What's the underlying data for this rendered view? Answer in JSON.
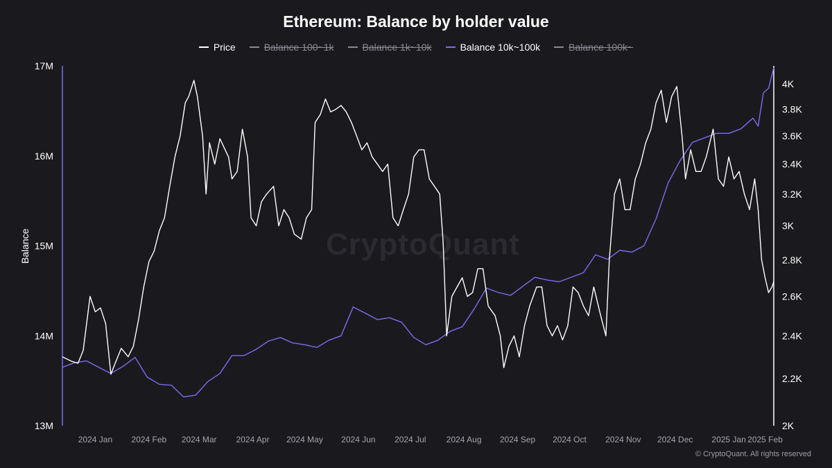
{
  "header": {
    "title": "Ethereum: Balance by holder value"
  },
  "legend": [
    {
      "label": "Price",
      "color": "#ffffff",
      "active": true
    },
    {
      "label": "Balance 100~1k",
      "color": "#8a8a93",
      "active": false
    },
    {
      "label": "Balance 1k~10k",
      "color": "#8a8a93",
      "active": false
    },
    {
      "label": "Balance 10k~100k",
      "color": "#7b6cf0",
      "active": true
    },
    {
      "label": "Balance 100k~",
      "color": "#8a8a93",
      "active": false
    }
  ],
  "watermark": "CryptoQuant",
  "credit": "© CryptoQuant. All rights reserved",
  "chart_data": {
    "type": "line",
    "ylabel": "Balance",
    "y_left_range": [
      13000000,
      17000000
    ],
    "y_left_ticks": [
      "13M",
      "14M",
      "15M",
      "16M",
      "17M"
    ],
    "y_left_tick_values": [
      13000000,
      14000000,
      15000000,
      16000000,
      17000000
    ],
    "y_right_scale": "log",
    "y_right_range": [
      2000,
      4150
    ],
    "y_right_ticks": [
      "2K",
      "2.2K",
      "2.4K",
      "2.6K",
      "2.8K",
      "3K",
      "3.2K",
      "3.4K",
      "3.6K",
      "3.8K",
      "4K"
    ],
    "y_right_tick_values": [
      2000,
      2200,
      2400,
      2600,
      2800,
      3000,
      3200,
      3400,
      3600,
      3800,
      4000
    ],
    "x_range": [
      "2023-12-27",
      "2025-02-10"
    ],
    "x_ticks": [
      {
        "label": "2024 Jan",
        "date": "2024-01-15"
      },
      {
        "label": "2024 Feb",
        "date": "2024-02-15"
      },
      {
        "label": "2024 Mar",
        "date": "2024-03-15"
      },
      {
        "label": "2024 Apr",
        "date": "2024-04-15"
      },
      {
        "label": "2024 May",
        "date": "2024-05-15"
      },
      {
        "label": "2024 Jun",
        "date": "2024-06-15"
      },
      {
        "label": "2024 Jul",
        "date": "2024-07-15"
      },
      {
        "label": "2024 Aug",
        "date": "2024-08-15"
      },
      {
        "label": "2024 Sep",
        "date": "2024-09-15"
      },
      {
        "label": "2024 Oct",
        "date": "2024-10-15"
      },
      {
        "label": "2024 Nov",
        "date": "2024-11-15"
      },
      {
        "label": "2024 Dec",
        "date": "2024-12-15"
      },
      {
        "label": "2025 Jan",
        "date": "2025-01-15"
      },
      {
        "label": "2025 Feb",
        "date": "2025-02-05"
      }
    ],
    "grid": false,
    "legend_position": "top-center",
    "series": [
      {
        "name": "Price",
        "axis": "right",
        "color": "#ffffff",
        "points": [
          [
            "2023-12-27",
            2300
          ],
          [
            "2024-01-01",
            2280
          ],
          [
            "2024-01-05",
            2270
          ],
          [
            "2024-01-08",
            2330
          ],
          [
            "2024-01-12",
            2600
          ],
          [
            "2024-01-15",
            2520
          ],
          [
            "2024-01-18",
            2540
          ],
          [
            "2024-01-21",
            2460
          ],
          [
            "2024-01-24",
            2220
          ],
          [
            "2024-01-27",
            2280
          ],
          [
            "2024-01-30",
            2340
          ],
          [
            "2024-02-03",
            2300
          ],
          [
            "2024-02-06",
            2350
          ],
          [
            "2024-02-09",
            2480
          ],
          [
            "2024-02-12",
            2650
          ],
          [
            "2024-02-15",
            2790
          ],
          [
            "2024-02-18",
            2850
          ],
          [
            "2024-02-21",
            2970
          ],
          [
            "2024-02-24",
            3050
          ],
          [
            "2024-02-27",
            3250
          ],
          [
            "2024-03-01",
            3450
          ],
          [
            "2024-03-04",
            3600
          ],
          [
            "2024-03-07",
            3850
          ],
          [
            "2024-03-09",
            3900
          ],
          [
            "2024-03-12",
            4030
          ],
          [
            "2024-03-14",
            3900
          ],
          [
            "2024-03-17",
            3600
          ],
          [
            "2024-03-19",
            3200
          ],
          [
            "2024-03-21",
            3550
          ],
          [
            "2024-03-24",
            3400
          ],
          [
            "2024-03-27",
            3580
          ],
          [
            "2024-03-30",
            3500
          ],
          [
            "2024-04-01",
            3450
          ],
          [
            "2024-04-03",
            3300
          ],
          [
            "2024-04-06",
            3350
          ],
          [
            "2024-04-09",
            3650
          ],
          [
            "2024-04-12",
            3450
          ],
          [
            "2024-04-14",
            3050
          ],
          [
            "2024-04-17",
            3000
          ],
          [
            "2024-04-20",
            3150
          ],
          [
            "2024-04-23",
            3200
          ],
          [
            "2024-04-27",
            3250
          ],
          [
            "2024-04-30",
            3000
          ],
          [
            "2024-05-03",
            3100
          ],
          [
            "2024-05-06",
            3050
          ],
          [
            "2024-05-09",
            2950
          ],
          [
            "2024-05-13",
            2920
          ],
          [
            "2024-05-16",
            3050
          ],
          [
            "2024-05-19",
            3100
          ],
          [
            "2024-05-21",
            3700
          ],
          [
            "2024-05-24",
            3760
          ],
          [
            "2024-05-27",
            3880
          ],
          [
            "2024-05-30",
            3780
          ],
          [
            "2024-06-02",
            3800
          ],
          [
            "2024-06-05",
            3830
          ],
          [
            "2024-06-08",
            3780
          ],
          [
            "2024-06-11",
            3700
          ],
          [
            "2024-06-14",
            3600
          ],
          [
            "2024-06-17",
            3500
          ],
          [
            "2024-06-20",
            3550
          ],
          [
            "2024-06-23",
            3450
          ],
          [
            "2024-06-26",
            3400
          ],
          [
            "2024-06-29",
            3350
          ],
          [
            "2024-07-02",
            3400
          ],
          [
            "2024-07-05",
            3050
          ],
          [
            "2024-07-08",
            3000
          ],
          [
            "2024-07-11",
            3100
          ],
          [
            "2024-07-14",
            3200
          ],
          [
            "2024-07-17",
            3450
          ],
          [
            "2024-07-20",
            3500
          ],
          [
            "2024-07-23",
            3500
          ],
          [
            "2024-07-26",
            3300
          ],
          [
            "2024-07-29",
            3250
          ],
          [
            "2024-08-01",
            3200
          ],
          [
            "2024-08-03",
            2900
          ],
          [
            "2024-08-05",
            2400
          ],
          [
            "2024-08-08",
            2600
          ],
          [
            "2024-08-11",
            2650
          ],
          [
            "2024-08-14",
            2700
          ],
          [
            "2024-08-17",
            2600
          ],
          [
            "2024-08-20",
            2620
          ],
          [
            "2024-08-23",
            2750
          ],
          [
            "2024-08-26",
            2750
          ],
          [
            "2024-08-29",
            2550
          ],
          [
            "2024-09-02",
            2500
          ],
          [
            "2024-09-05",
            2400
          ],
          [
            "2024-09-07",
            2250
          ],
          [
            "2024-09-10",
            2350
          ],
          [
            "2024-09-13",
            2400
          ],
          [
            "2024-09-16",
            2300
          ],
          [
            "2024-09-19",
            2450
          ],
          [
            "2024-09-22",
            2550
          ],
          [
            "2024-09-26",
            2650
          ],
          [
            "2024-09-29",
            2650
          ],
          [
            "2024-10-02",
            2450
          ],
          [
            "2024-10-05",
            2400
          ],
          [
            "2024-10-08",
            2450
          ],
          [
            "2024-10-11",
            2380
          ],
          [
            "2024-10-14",
            2450
          ],
          [
            "2024-10-17",
            2650
          ],
          [
            "2024-10-20",
            2620
          ],
          [
            "2024-10-23",
            2550
          ],
          [
            "2024-10-26",
            2500
          ],
          [
            "2024-10-29",
            2650
          ],
          [
            "2024-11-02",
            2500
          ],
          [
            "2024-11-05",
            2400
          ],
          [
            "2024-11-07",
            2800
          ],
          [
            "2024-11-10",
            3200
          ],
          [
            "2024-11-13",
            3300
          ],
          [
            "2024-11-16",
            3100
          ],
          [
            "2024-11-19",
            3100
          ],
          [
            "2024-11-22",
            3300
          ],
          [
            "2024-11-25",
            3400
          ],
          [
            "2024-11-28",
            3550
          ],
          [
            "2024-12-01",
            3650
          ],
          [
            "2024-12-04",
            3850
          ],
          [
            "2024-12-07",
            3950
          ],
          [
            "2024-12-10",
            3700
          ],
          [
            "2024-12-13",
            3900
          ],
          [
            "2024-12-16",
            3980
          ],
          [
            "2024-12-19",
            3600
          ],
          [
            "2024-12-21",
            3300
          ],
          [
            "2024-12-24",
            3500
          ],
          [
            "2024-12-27",
            3350
          ],
          [
            "2024-12-30",
            3350
          ],
          [
            "2025-01-02",
            3450
          ],
          [
            "2025-01-06",
            3650
          ],
          [
            "2025-01-09",
            3300
          ],
          [
            "2025-01-12",
            3250
          ],
          [
            "2025-01-15",
            3450
          ],
          [
            "2025-01-18",
            3300
          ],
          [
            "2025-01-21",
            3350
          ],
          [
            "2025-01-24",
            3200
          ],
          [
            "2025-01-27",
            3100
          ],
          [
            "2025-01-30",
            3300
          ],
          [
            "2025-02-01",
            3100
          ],
          [
            "2025-02-03",
            2800
          ],
          [
            "2025-02-05",
            2700
          ],
          [
            "2025-02-07",
            2620
          ],
          [
            "2025-02-09",
            2650
          ],
          [
            "2025-02-10",
            2680
          ]
        ]
      },
      {
        "name": "Balance 10k~100k",
        "axis": "left",
        "color": "#7b6cf0",
        "points": [
          [
            "2023-12-27",
            13650000
          ],
          [
            "2024-01-03",
            13700000
          ],
          [
            "2024-01-10",
            13720000
          ],
          [
            "2024-01-17",
            13650000
          ],
          [
            "2024-01-24",
            13580000
          ],
          [
            "2024-01-31",
            13660000
          ],
          [
            "2024-02-07",
            13760000
          ],
          [
            "2024-02-14",
            13540000
          ],
          [
            "2024-02-21",
            13460000
          ],
          [
            "2024-02-28",
            13450000
          ],
          [
            "2024-03-06",
            13320000
          ],
          [
            "2024-03-13",
            13340000
          ],
          [
            "2024-03-20",
            13490000
          ],
          [
            "2024-03-27",
            13580000
          ],
          [
            "2024-04-03",
            13780000
          ],
          [
            "2024-04-10",
            13780000
          ],
          [
            "2024-04-17",
            13850000
          ],
          [
            "2024-04-24",
            13940000
          ],
          [
            "2024-05-01",
            13980000
          ],
          [
            "2024-05-08",
            13920000
          ],
          [
            "2024-05-15",
            13900000
          ],
          [
            "2024-05-22",
            13870000
          ],
          [
            "2024-05-29",
            13950000
          ],
          [
            "2024-06-05",
            14000000
          ],
          [
            "2024-06-12",
            14320000
          ],
          [
            "2024-06-19",
            14250000
          ],
          [
            "2024-06-26",
            14180000
          ],
          [
            "2024-07-03",
            14200000
          ],
          [
            "2024-07-10",
            14150000
          ],
          [
            "2024-07-17",
            13980000
          ],
          [
            "2024-07-24",
            13900000
          ],
          [
            "2024-07-31",
            13950000
          ],
          [
            "2024-08-07",
            14050000
          ],
          [
            "2024-08-14",
            14100000
          ],
          [
            "2024-08-21",
            14300000
          ],
          [
            "2024-08-28",
            14530000
          ],
          [
            "2024-09-04",
            14480000
          ],
          [
            "2024-09-11",
            14450000
          ],
          [
            "2024-09-18",
            14550000
          ],
          [
            "2024-09-25",
            14650000
          ],
          [
            "2024-10-02",
            14620000
          ],
          [
            "2024-10-09",
            14600000
          ],
          [
            "2024-10-16",
            14650000
          ],
          [
            "2024-10-23",
            14700000
          ],
          [
            "2024-10-30",
            14900000
          ],
          [
            "2024-11-06",
            14850000
          ],
          [
            "2024-11-13",
            14950000
          ],
          [
            "2024-11-20",
            14930000
          ],
          [
            "2024-11-27",
            15000000
          ],
          [
            "2024-12-04",
            15300000
          ],
          [
            "2024-12-11",
            15700000
          ],
          [
            "2024-12-18",
            15950000
          ],
          [
            "2024-12-25",
            16150000
          ],
          [
            "2025-01-01",
            16200000
          ],
          [
            "2025-01-08",
            16250000
          ],
          [
            "2025-01-15",
            16250000
          ],
          [
            "2025-01-22",
            16300000
          ],
          [
            "2025-01-29",
            16420000
          ],
          [
            "2025-02-01",
            16330000
          ],
          [
            "2025-02-04",
            16700000
          ],
          [
            "2025-02-07",
            16750000
          ],
          [
            "2025-02-10",
            16980000
          ]
        ]
      }
    ]
  }
}
